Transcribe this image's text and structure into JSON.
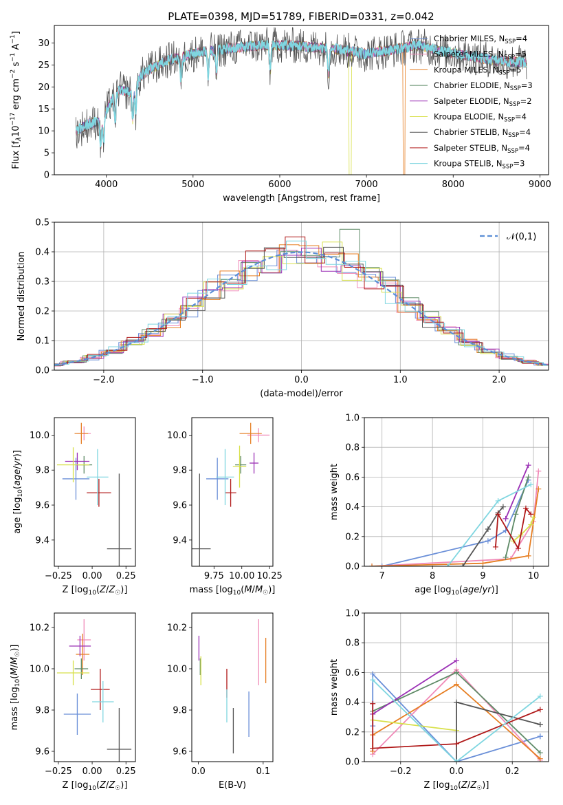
{
  "title": "PLATE=0398, MJD=51789, FIBERID=0331, z=0.042",
  "colors": {
    "Chabrier MILES": "#6a8fd8",
    "Salpeter MILES": "#f08ab8",
    "Kroupa MILES": "#e67e22",
    "Chabrier ELODIE": "#5e8a66",
    "Salpeter ELODIE": "#9b30b5",
    "Kroupa ELODIE": "#d8e04a",
    "Chabrier STELIB": "#555555",
    "Salpeter STELIB": "#b01818",
    "Kroupa STELIB": "#7fd6e0",
    "normal_curve": "#5b8ed6"
  },
  "chart_data": [
    {
      "type": "line",
      "title": "PLATE=0398, MJD=51789, FIBERID=0331, z=0.042",
      "xlabel": "wavelength [Angstrom, rest frame]",
      "ylabel": "Flux [f_λ10^-17 erg cm^-2 s^-1 A^-1]",
      "xlim": [
        3400,
        9100
      ],
      "ylim": [
        0,
        34
      ],
      "xticks": [
        4000,
        5000,
        6000,
        7000,
        8000,
        9000
      ],
      "yticks": [
        0,
        5,
        10,
        15,
        20,
        25,
        30
      ],
      "legend_position": "top-right",
      "legend": [
        {
          "name": "Chabrier MILES",
          "nssp": "4"
        },
        {
          "name": "Salpeter MILES",
          "nssp": "5"
        },
        {
          "name": "Kroupa MILES",
          "nssp": "5"
        },
        {
          "name": "Chabrier ELODIE",
          "nssp": "3"
        },
        {
          "name": "Salpeter ELODIE",
          "nssp": "2"
        },
        {
          "name": "Kroupa ELODIE",
          "nssp": "4"
        },
        {
          "name": "Chabrier STELIB",
          "nssp": "4"
        },
        {
          "name": "Salpeter STELIB",
          "nssp": "4"
        },
        {
          "name": "Kroupa STELIB",
          "nssp": "3"
        }
      ],
      "continuum": {
        "x": [
          3650,
          3800,
          3950,
          4050,
          4150,
          4300,
          4400,
          4500,
          4700,
          4900,
          5100,
          5300,
          5500,
          5800,
          6100,
          6400,
          6700,
          7000,
          7300,
          7600,
          7900,
          8200,
          8500,
          8850
        ],
        "y": [
          10,
          11.5,
          12.5,
          16.5,
          19.5,
          18.5,
          22.5,
          24,
          26,
          27,
          28,
          28.5,
          29,
          29.5,
          29.5,
          29,
          28.5,
          27.5,
          28.5,
          29.5,
          28,
          27,
          26,
          25.5
        ]
      },
      "dropouts": [
        {
          "model": "Kroupa ELODIE",
          "from": 6800
        },
        {
          "model": "Kroupa MILES",
          "from": 7420
        }
      ]
    },
    {
      "type": "line",
      "xlabel": "(data-model)/error",
      "ylabel": "Normed distribution",
      "xlim": [
        -2.5,
        2.5
      ],
      "ylim": [
        0,
        0.5
      ],
      "xticks": [
        -2,
        -1,
        0,
        1,
        2
      ],
      "yticks": [
        0.0,
        0.1,
        0.2,
        0.3,
        0.4,
        0.5
      ],
      "grid": true,
      "legend_position": "top-right",
      "reference_label": "𝒩(0,1)",
      "bin_width": 0.2,
      "histogram_note": "nine step histograms of residuals, one per model, all closely following N(0,1)",
      "peak_values": {
        "Chabrier ELODIE": 0.476,
        "Salpeter MILES": 0.42
      }
    },
    {
      "type": "scatter",
      "xlabel": "Z [log10(Z/Z☉)]",
      "ylabel": "age [log10(age/yr)]",
      "xlim": [
        -0.28,
        0.32
      ],
      "ylim": [
        9.25,
        10.1
      ],
      "xticks": [
        -0.25,
        0.0,
        0.25
      ],
      "yticks": [
        9.4,
        9.6,
        9.8,
        10.0
      ],
      "points": [
        {
          "model": "Chabrier MILES",
          "x": -0.12,
          "xerr": 0.1,
          "y": 9.75,
          "yerr": 0.12
        },
        {
          "model": "Salpeter MILES",
          "x": -0.06,
          "xerr": 0.05,
          "y": 10.01,
          "yerr": 0.04
        },
        {
          "model": "Kroupa MILES",
          "x": -0.08,
          "xerr": 0.05,
          "y": 10.01,
          "yerr": 0.06
        },
        {
          "model": "Chabrier ELODIE",
          "x": -0.06,
          "xerr": 0.06,
          "y": 9.83,
          "yerr": 0.05
        },
        {
          "model": "Salpeter ELODIE",
          "x": -0.11,
          "xerr": 0.09,
          "y": 9.85,
          "yerr": 0.05
        },
        {
          "model": "Kroupa ELODIE",
          "x": -0.14,
          "xerr": 0.12,
          "y": 9.83,
          "yerr": 0.1
        },
        {
          "model": "Chabrier STELIB",
          "x": 0.2,
          "xerr": 0.09,
          "y": 9.35,
          "yerr": 0.43
        },
        {
          "model": "Salpeter STELIB",
          "x": 0.05,
          "xerr": 0.09,
          "y": 9.67,
          "yerr": 0.08
        },
        {
          "model": "Kroupa STELIB",
          "x": 0.04,
          "xerr": 0.08,
          "y": 9.76,
          "yerr": 0.16
        }
      ]
    },
    {
      "type": "scatter",
      "xlabel": "mass [log10(M/M☉)]",
      "ylabel": "",
      "xlim": [
        9.55,
        10.28
      ],
      "ylim": [
        9.25,
        10.1
      ],
      "xticks": [
        9.75,
        10.0,
        10.25
      ],
      "yticks": [
        9.4,
        9.6,
        9.8,
        10.0
      ],
      "points": [
        {
          "model": "Chabrier MILES",
          "x": 9.78,
          "xerr": 0.1,
          "y": 9.75,
          "yerr": 0.12
        },
        {
          "model": "Salpeter MILES",
          "x": 10.15,
          "xerr": 0.1,
          "y": 10.0,
          "yerr": 0.04
        },
        {
          "model": "Kroupa MILES",
          "x": 10.08,
          "xerr": 0.1,
          "y": 10.01,
          "yerr": 0.06
        },
        {
          "model": "Chabrier ELODIE",
          "x": 9.99,
          "xerr": 0.05,
          "y": 9.83,
          "yerr": 0.05
        },
        {
          "model": "Salpeter ELODIE",
          "x": 10.11,
          "xerr": 0.04,
          "y": 9.84,
          "yerr": 0.06
        },
        {
          "model": "Kroupa ELODIE",
          "x": 9.98,
          "xerr": 0.06,
          "y": 9.82,
          "yerr": 0.12
        },
        {
          "model": "Chabrier STELIB",
          "x": 9.62,
          "xerr": 0.1,
          "y": 9.35,
          "yerr": 0.43
        },
        {
          "model": "Salpeter STELIB",
          "x": 9.9,
          "xerr": 0.05,
          "y": 9.67,
          "yerr": 0.08
        },
        {
          "model": "Kroupa STELIB",
          "x": 9.85,
          "xerr": 0.08,
          "y": 9.76,
          "yerr": 0.16
        }
      ]
    },
    {
      "type": "line",
      "xlabel": "age [log10(age/yr)]",
      "ylabel": "mass weight",
      "xlim": [
        6.65,
        10.3
      ],
      "ylim": [
        0,
        1.0
      ],
      "xticks": [
        7,
        8,
        9,
        10
      ],
      "yticks": [
        0.0,
        0.2,
        0.4,
        0.6,
        0.8,
        1.0
      ],
      "grid": true,
      "series": [
        {
          "model": "Chabrier MILES",
          "x": [
            7.0,
            9.1,
            9.45,
            9.9
          ],
          "y": [
            0.0,
            0.17,
            0.24,
            0.58
          ]
        },
        {
          "model": "Salpeter MILES",
          "x": [
            6.8,
            9.55,
            10.0,
            10.1
          ],
          "y": [
            0.0,
            0.05,
            0.3,
            0.64
          ]
        },
        {
          "model": "Kroupa MILES",
          "x": [
            6.8,
            9.0,
            9.9,
            10.1
          ],
          "y": [
            0.0,
            0.02,
            0.07,
            0.52
          ]
        },
        {
          "model": "Chabrier ELODIE",
          "x": [
            9.45,
            9.65,
            9.9
          ],
          "y": [
            0.06,
            0.35,
            0.6
          ]
        },
        {
          "model": "Salpeter ELODIE",
          "x": [
            9.45,
            9.9
          ],
          "y": [
            0.32,
            0.68
          ]
        },
        {
          "model": "Kroupa ELODIE",
          "x": [
            9.6,
            9.75,
            9.95,
            10.0
          ],
          "y": [
            0.17,
            0.21,
            0.28,
            0.33
          ]
        },
        {
          "model": "Chabrier STELIB",
          "x": [
            8.6,
            9.1,
            9.3,
            9.4
          ],
          "y": [
            0.0,
            0.25,
            0.36,
            0.4
          ]
        },
        {
          "model": "Salpeter STELIB",
          "x": [
            9.25,
            9.3,
            9.7,
            9.85,
            9.95
          ],
          "y": [
            0.13,
            0.35,
            0.12,
            0.39,
            0.35
          ]
        },
        {
          "model": "Kroupa STELIB",
          "x": [
            8.3,
            9.3,
            9.95
          ],
          "y": [
            0.0,
            0.44,
            0.55
          ]
        }
      ]
    },
    {
      "type": "scatter",
      "xlabel": "Z [log10(Z/Z☉)]",
      "ylabel": "mass [log10(M/M☉)]",
      "xlim": [
        -0.28,
        0.32
      ],
      "ylim": [
        9.55,
        10.27
      ],
      "xticks": [
        -0.25,
        0.0,
        0.25
      ],
      "yticks": [
        9.6,
        9.8,
        10.0,
        10.2
      ],
      "points": [
        {
          "model": "Chabrier MILES",
          "x": -0.11,
          "xerr": 0.1,
          "y": 9.78,
          "yerr": 0.1
        },
        {
          "model": "Salpeter MILES",
          "x": -0.06,
          "xerr": 0.05,
          "y": 10.14,
          "yerr": 0.1
        },
        {
          "model": "Kroupa MILES",
          "x": -0.07,
          "xerr": 0.05,
          "y": 10.07,
          "yerr": 0.1
        },
        {
          "model": "Chabrier ELODIE",
          "x": -0.08,
          "xerr": 0.05,
          "y": 10.0,
          "yerr": 0.05
        },
        {
          "model": "Salpeter ELODIE",
          "x": -0.09,
          "xerr": 0.08,
          "y": 10.11,
          "yerr": 0.05
        },
        {
          "model": "Kroupa ELODIE",
          "x": -0.14,
          "xerr": 0.12,
          "y": 9.98,
          "yerr": 0.06
        },
        {
          "model": "Chabrier STELIB",
          "x": 0.2,
          "xerr": 0.09,
          "y": 9.61,
          "yerr": 0.2
        },
        {
          "model": "Salpeter STELIB",
          "x": 0.06,
          "xerr": 0.07,
          "y": 9.9,
          "yerr": 0.1
        },
        {
          "model": "Kroupa STELIB",
          "x": 0.08,
          "xerr": 0.08,
          "y": 9.84,
          "yerr": 0.1
        }
      ]
    },
    {
      "type": "scatter",
      "xlabel": "E(B-V)",
      "ylabel": "",
      "xlim": [
        -0.01,
        0.115
      ],
      "ylim": [
        9.55,
        10.27
      ],
      "xticks": [
        0.0,
        0.1
      ],
      "yticks": [
        9.6,
        9.8,
        10.0,
        10.2
      ],
      "points": [
        {
          "model": "Chabrier MILES",
          "x": 0.078,
          "y": 9.78,
          "yerr": 0.11
        },
        {
          "model": "Salpeter MILES",
          "x": 0.093,
          "y": 10.08,
          "yerr": 0.16
        },
        {
          "model": "Kroupa MILES",
          "x": 0.104,
          "y": 10.04,
          "yerr": 0.11
        },
        {
          "model": "Chabrier ELODIE",
          "x": 0.003,
          "y": 10.01,
          "yerr": 0.04
        },
        {
          "model": "Salpeter ELODIE",
          "x": 0.001,
          "y": 10.1,
          "yerr": 0.06
        },
        {
          "model": "Kroupa ELODIE",
          "x": 0.004,
          "y": 9.99,
          "yerr": 0.07
        },
        {
          "model": "Chabrier STELIB",
          "x": 0.054,
          "y": 9.7,
          "yerr": 0.11
        },
        {
          "model": "Salpeter STELIB",
          "x": 0.044,
          "y": 9.93,
          "yerr": 0.07
        },
        {
          "model": "Kroupa STELIB",
          "x": 0.044,
          "y": 9.82,
          "yerr": 0.08
        }
      ]
    },
    {
      "type": "line",
      "xlabel": "Z [log10(Z/Z☉)]",
      "ylabel": "mass weight",
      "xlim": [
        -0.33,
        0.33
      ],
      "ylim": [
        0,
        1.0
      ],
      "xticks": [
        -0.2,
        0.0,
        0.2
      ],
      "yticks": [
        0.0,
        0.2,
        0.4,
        0.6,
        0.8,
        1.0
      ],
      "grid": true,
      "series": [
        {
          "model": "Chabrier MILES",
          "x": [
            -0.3,
            -0.3,
            0.0,
            0.3,
            0.3
          ],
          "y": [
            0.24,
            0.59,
            0.0,
            0.17,
            0.17
          ]
        },
        {
          "model": "Salpeter MILES",
          "x": [
            -0.3,
            0.0,
            0.3
          ],
          "y": [
            0.05,
            0.62,
            0.01
          ]
        },
        {
          "model": "Kroupa MILES",
          "x": [
            -0.3,
            -0.3,
            0.0,
            0.3
          ],
          "y": [
            0.07,
            0.18,
            0.52,
            0.02
          ]
        },
        {
          "model": "Chabrier ELODIE",
          "x": [
            -0.3,
            0.0,
            0.3
          ],
          "y": [
            0.34,
            0.6,
            0.06
          ]
        },
        {
          "model": "Salpeter ELODIE",
          "x": [
            -0.3,
            0.0
          ],
          "y": [
            0.32,
            0.68
          ]
        },
        {
          "model": "Kroupa ELODIE",
          "x": [
            -0.3,
            0.0
          ],
          "y": [
            0.28,
            0.21
          ]
        },
        {
          "model": "Chabrier STELIB",
          "x": [
            0.0,
            0.0,
            0.3,
            0.3
          ],
          "y": [
            0.0,
            0.4,
            0.25,
            0.25
          ]
        },
        {
          "model": "Salpeter STELIB",
          "x": [
            -0.3,
            -0.3,
            0.0,
            0.3
          ],
          "y": [
            0.39,
            0.09,
            0.12,
            0.35
          ]
        },
        {
          "model": "Kroupa STELIB",
          "x": [
            -0.3,
            0.0,
            0.3
          ],
          "y": [
            0.55,
            0.0,
            0.44
          ]
        }
      ]
    }
  ]
}
